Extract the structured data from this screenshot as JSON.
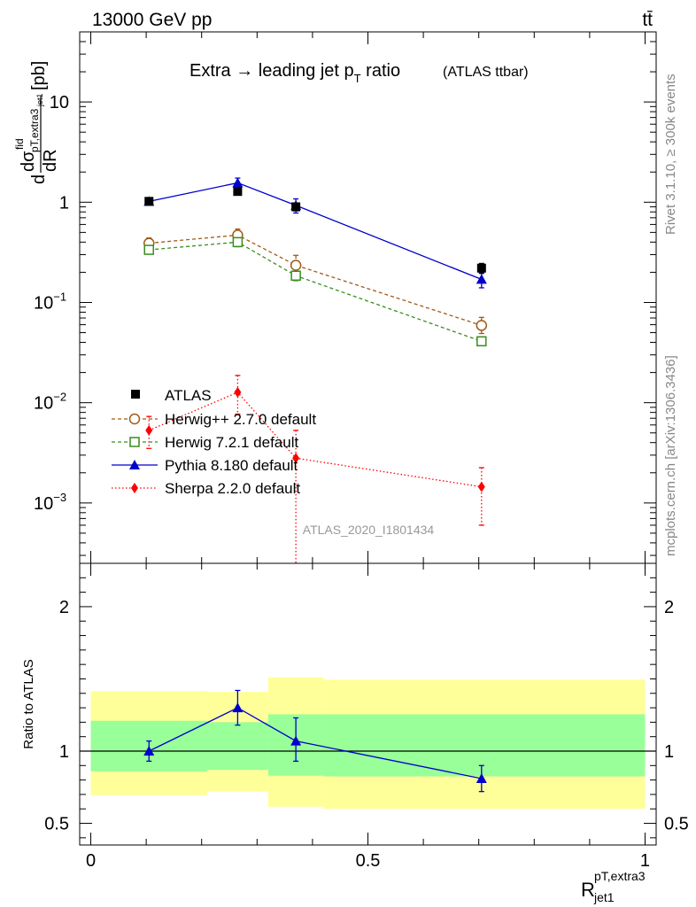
{
  "header": {
    "energy": "13000 GeV pp",
    "process": "tt̄"
  },
  "side_labels": {
    "rivet": "Rivet 3.1.10, ≥ 300k events",
    "mcplots": "mcplots.cern.ch [arXiv:1306.3436]"
  },
  "watermark": "ATLAS_2020_I1801434",
  "chart_data": [
    {
      "type": "line",
      "title": "Extra → leading jet p",
      "title_sub": "T",
      "title_tail": " ratio",
      "title_note": "(ATLAS ttbar)",
      "ylabel": {
        "lead": "d",
        "sigma": "dσ",
        "sigma_sup": "fid",
        "sigma_sub": "pT,extra3",
        "denom": "dR",
        "denom_sub": "jet1",
        "unit": "[pb]"
      },
      "yscale": "log",
      "ylim": [
        0.00025,
        50
      ],
      "xlim": [
        -0.02,
        1.02
      ],
      "y_major_ticks": [
        0.001,
        0.01,
        0.1,
        1,
        10
      ],
      "y_tick_labels": [
        {
          "mant": "10",
          "exp": "−3"
        },
        {
          "mant": "10",
          "exp": "−2"
        },
        {
          "mant": "10",
          "exp": "−1"
        },
        {
          "mant": "1",
          "exp": ""
        },
        {
          "mant": "10",
          "exp": ""
        }
      ],
      "legend_position": "lower-left",
      "series": [
        {
          "name": "ATLAS",
          "style": "data",
          "color": "#000000",
          "marker": "square",
          "x": [
            0.105,
            0.265,
            0.37,
            0.705
          ],
          "y": [
            1.02,
            1.28,
            0.9,
            0.22
          ],
          "err_up": [
            0.06,
            0.1,
            0.08,
            0.025
          ],
          "err_dn": [
            0.06,
            0.1,
            0.08,
            0.025
          ]
        },
        {
          "name": "Herwig++ 2.7.0 default",
          "style": "dashed",
          "color": "#a05a16",
          "marker": "circle-open",
          "x": [
            0.105,
            0.265,
            0.37,
            0.705
          ],
          "y": [
            0.39,
            0.47,
            0.235,
            0.059
          ],
          "err_up": [
            0.05,
            0.07,
            0.06,
            0.012
          ],
          "err_dn": [
            0.05,
            0.07,
            0.05,
            0.01
          ]
        },
        {
          "name": "Herwig 7.2.1 default",
          "style": "dashed",
          "color": "#3a8c1e",
          "marker": "square-open",
          "x": [
            0.105,
            0.265,
            0.37,
            0.705
          ],
          "y": [
            0.335,
            0.4,
            0.185,
            0.041
          ],
          "err_up": [
            0.03,
            0.04,
            0.02,
            0.004
          ],
          "err_dn": [
            0.03,
            0.04,
            0.02,
            0.004
          ]
        },
        {
          "name": "Pythia 8.180 default",
          "style": "solid",
          "color": "#0000cc",
          "marker": "triangle",
          "x": [
            0.105,
            0.265,
            0.37,
            0.705
          ],
          "y": [
            1.02,
            1.56,
            0.93,
            0.17
          ],
          "err_up": [
            0.08,
            0.18,
            0.15,
            0.03
          ],
          "err_dn": [
            0.08,
            0.18,
            0.15,
            0.03
          ]
        },
        {
          "name": "Sherpa 2.2.0 default",
          "style": "dotted",
          "color": "#ff0000",
          "marker": "diamond",
          "x": [
            0.105,
            0.265,
            0.37,
            0.705
          ],
          "y": [
            0.0053,
            0.0127,
            0.0028,
            0.00145
          ],
          "err_up": [
            0.002,
            0.006,
            0.0025,
            0.0008
          ],
          "err_dn": [
            0.0018,
            0.005,
            0.0028,
            0.00085
          ]
        }
      ]
    },
    {
      "type": "line",
      "ylabel": "Ratio to ATLAS",
      "xlabel": "R",
      "xlabel_sup": "pT,extra3",
      "xlabel_sub": "jet1",
      "xlim": [
        -0.02,
        1.02
      ],
      "ylim": [
        0.35,
        2.3
      ],
      "x_ticks": [
        0,
        0.5,
        1
      ],
      "x_tick_labels": [
        "0",
        "0.5",
        "1"
      ],
      "y_ticks": [
        0.5,
        1,
        2
      ],
      "y_tick_labels": [
        "0.5",
        "1",
        "2"
      ],
      "reference_line": 1,
      "bands": [
        {
          "x0": 0.0,
          "x1": 0.21,
          "yellow": [
            0.695,
            1.415
          ],
          "green": [
            0.86,
            1.21
          ]
        },
        {
          "x0": 0.21,
          "x1": 0.32,
          "yellow": [
            0.72,
            1.41
          ],
          "green": [
            0.87,
            1.2
          ]
        },
        {
          "x0": 0.32,
          "x1": 0.42,
          "yellow": [
            0.615,
            1.51
          ],
          "green": [
            0.83,
            1.255
          ]
        },
        {
          "x0": 0.42,
          "x1": 1.0,
          "yellow": [
            0.6,
            1.495
          ],
          "green": [
            0.825,
            1.255
          ]
        }
      ],
      "series": [
        {
          "name": "Pythia 8.180 default",
          "color": "#0000cc",
          "marker": "triangle",
          "x": [
            0.105,
            0.265,
            0.37,
            0.705
          ],
          "y": [
            1.0,
            1.3,
            1.07,
            0.81
          ],
          "err_up": [
            0.07,
            0.12,
            0.16,
            0.09
          ],
          "err_dn": [
            0.07,
            0.12,
            0.14,
            0.09
          ]
        }
      ]
    }
  ]
}
